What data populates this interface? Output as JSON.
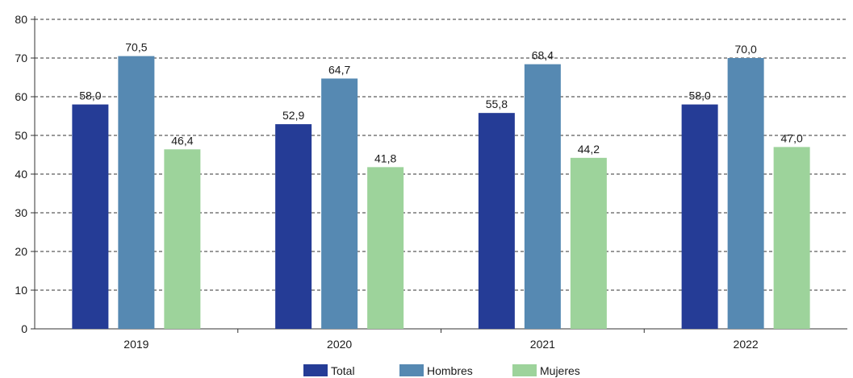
{
  "chart_data": {
    "type": "bar",
    "categories": [
      "2019",
      "2020",
      "2021",
      "2022"
    ],
    "series": [
      {
        "name": "Total",
        "values": [
          58.0,
          52.9,
          55.8,
          58.0
        ],
        "labels": [
          "58,0",
          "52,9",
          "55,8",
          "58,0"
        ],
        "color": "#253c96"
      },
      {
        "name": "Hombres",
        "values": [
          70.5,
          64.7,
          68.4,
          70.0
        ],
        "labels": [
          "70,5",
          "64,7",
          "68,4",
          "70,0"
        ],
        "color": "#5689b2"
      },
      {
        "name": "Mujeres",
        "values": [
          46.4,
          41.8,
          44.2,
          47.0
        ],
        "labels": [
          "46,4",
          "41,8",
          "44,2",
          "47,0"
        ],
        "color": "#9dd39b"
      }
    ],
    "yticks": [
      "0",
      "10",
      "20",
      "30",
      "40",
      "50",
      "60",
      "70",
      "80"
    ],
    "ylim": [
      0,
      80
    ],
    "grid": true,
    "legend": "bottom-center"
  }
}
